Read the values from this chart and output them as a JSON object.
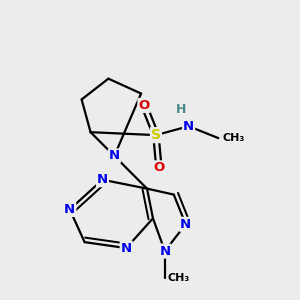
{
  "bg_color": "#ececec",
  "atom_colors": {
    "C": "#000000",
    "N": "#0000ee",
    "O": "#dd0000",
    "S": "#cccc00",
    "H": "#4a8888"
  },
  "bond_color": "#000000",
  "lw": 1.6,
  "fs": 9.5
}
